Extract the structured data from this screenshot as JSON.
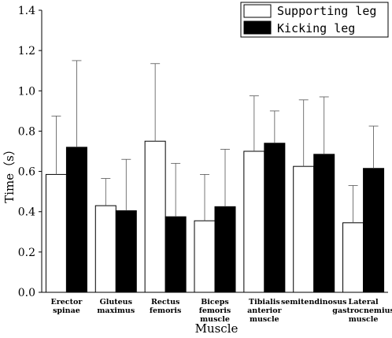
{
  "chart_data": {
    "type": "bar",
    "categories": [
      [
        "Erector",
        "spinae"
      ],
      [
        "Gluteus",
        "maximus"
      ],
      [
        "Rectus",
        "femoris"
      ],
      [
        "Biceps",
        "femoris",
        "muscle"
      ],
      [
        "Tibialis",
        "anterior",
        "muscle"
      ],
      [
        "semitendinosus"
      ],
      [
        "Lateral",
        "gastrocnemius",
        "muscle"
      ]
    ],
    "series": [
      {
        "name": "Supporting leg",
        "color": "#ffffff",
        "values": [
          0.585,
          0.43,
          0.75,
          0.355,
          0.7,
          0.625,
          0.345
        ],
        "errors": [
          0.29,
          0.135,
          0.385,
          0.23,
          0.275,
          0.33,
          0.185
        ]
      },
      {
        "name": "Kicking leg",
        "color": "#000000",
        "values": [
          0.72,
          0.405,
          0.375,
          0.425,
          0.74,
          0.685,
          0.615
        ],
        "errors": [
          0.43,
          0.255,
          0.265,
          0.285,
          0.16,
          0.285,
          0.21
        ]
      }
    ],
    "xlabel": "Muscle",
    "ylabel": "Time（s）",
    "ylim": [
      0,
      1.4
    ],
    "yticks": [
      "0.0",
      "0.2",
      "0.4",
      "0.6",
      "0.8",
      "1.0",
      "1.2",
      "1.4"
    ],
    "error_bars": "upper",
    "grid": false,
    "legend_position": "top-right"
  }
}
